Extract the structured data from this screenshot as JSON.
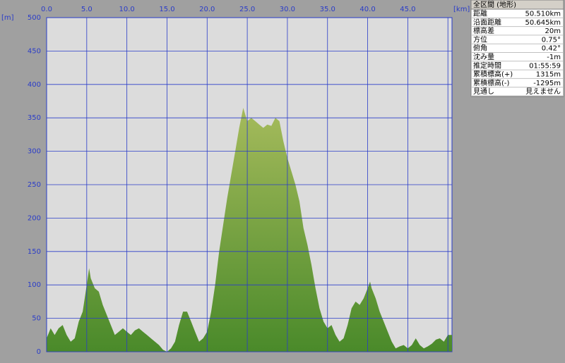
{
  "chart_data": {
    "type": "area",
    "x_unit": "[km]",
    "y_unit": "[m]",
    "x": [
      0,
      0.5,
      1,
      1.5,
      2,
      2.5,
      3,
      3.5,
      4,
      4.5,
      5,
      5.3,
      5.5,
      6,
      6.5,
      7,
      7.5,
      8,
      8.5,
      9,
      9.5,
      10,
      10.5,
      11,
      11.5,
      12,
      12.5,
      13,
      13.5,
      14,
      14.5,
      15,
      15.5,
      16,
      16.5,
      17,
      17.5,
      18,
      18.5,
      19,
      19.5,
      20,
      20.5,
      21,
      21.5,
      22,
      22.5,
      23,
      23.5,
      24,
      24.5,
      25,
      25.5,
      26,
      26.5,
      27,
      27.5,
      28,
      28.5,
      29,
      29.5,
      30,
      30.5,
      31,
      31.5,
      32,
      32.5,
      33,
      33.5,
      34,
      34.5,
      35,
      35.5,
      36,
      36.5,
      37,
      37.5,
      38,
      38.5,
      39,
      39.5,
      40,
      40.3,
      40.5,
      41,
      41.5,
      42,
      42.5,
      43,
      43.5,
      44,
      44.5,
      45,
      45.5,
      46,
      46.5,
      47,
      47.5,
      48,
      48.5,
      49,
      49.5,
      50,
      50.51
    ],
    "values": [
      20,
      35,
      25,
      35,
      40,
      25,
      15,
      20,
      45,
      60,
      100,
      125,
      110,
      95,
      90,
      70,
      55,
      40,
      25,
      30,
      35,
      30,
      25,
      32,
      35,
      30,
      25,
      20,
      15,
      10,
      3,
      0,
      5,
      15,
      40,
      60,
      60,
      45,
      30,
      15,
      20,
      30,
      60,
      100,
      150,
      190,
      230,
      265,
      300,
      335,
      365,
      345,
      350,
      345,
      340,
      335,
      340,
      338,
      350,
      345,
      315,
      290,
      270,
      250,
      225,
      185,
      160,
      130,
      95,
      65,
      45,
      35,
      40,
      25,
      15,
      20,
      40,
      65,
      75,
      70,
      80,
      95,
      105,
      95,
      80,
      60,
      45,
      30,
      15,
      5,
      8,
      10,
      5,
      10,
      20,
      10,
      5,
      8,
      12,
      18,
      20,
      15,
      25,
      25
    ],
    "color_top": "#a6bb5c",
    "color_bottom": "#4a8a2a",
    "xlim": [
      0,
      50.51
    ],
    "ylim": [
      0,
      500
    ],
    "xticks": [
      {
        "value": 0,
        "label": "0.0"
      },
      {
        "value": 5,
        "label": "5.0"
      },
      {
        "value": 10,
        "label": "10.0"
      },
      {
        "value": 15,
        "label": "15.0"
      },
      {
        "value": 20,
        "label": "20.0"
      },
      {
        "value": 25,
        "label": "25.0"
      },
      {
        "value": 30,
        "label": "30.0"
      },
      {
        "value": 35,
        "label": "35.0"
      },
      {
        "value": 40,
        "label": "40.0"
      },
      {
        "value": 45,
        "label": "45.0"
      },
      {
        "value": 50,
        "label": "50.0"
      }
    ],
    "yticks": [
      0,
      50,
      100,
      150,
      200,
      250,
      300,
      350,
      400,
      450,
      500
    ],
    "grid": true
  },
  "info_panel": {
    "title": "全区間 (地形)",
    "rows": [
      [
        "距離",
        "50.510km"
      ],
      [
        "沿面距離",
        "50.645km"
      ],
      [
        "標高差",
        "20m"
      ],
      [
        "方位",
        "0.75°"
      ],
      [
        "俯角",
        "0.42°"
      ],
      [
        "沈み量",
        "-1m"
      ],
      [
        "推定時間",
        "01:55:59"
      ],
      [
        "累積標高(+)",
        "1315m"
      ],
      [
        "累積標高(-)",
        "-1295m"
      ],
      [
        "見通し",
        "見えません"
      ]
    ]
  }
}
